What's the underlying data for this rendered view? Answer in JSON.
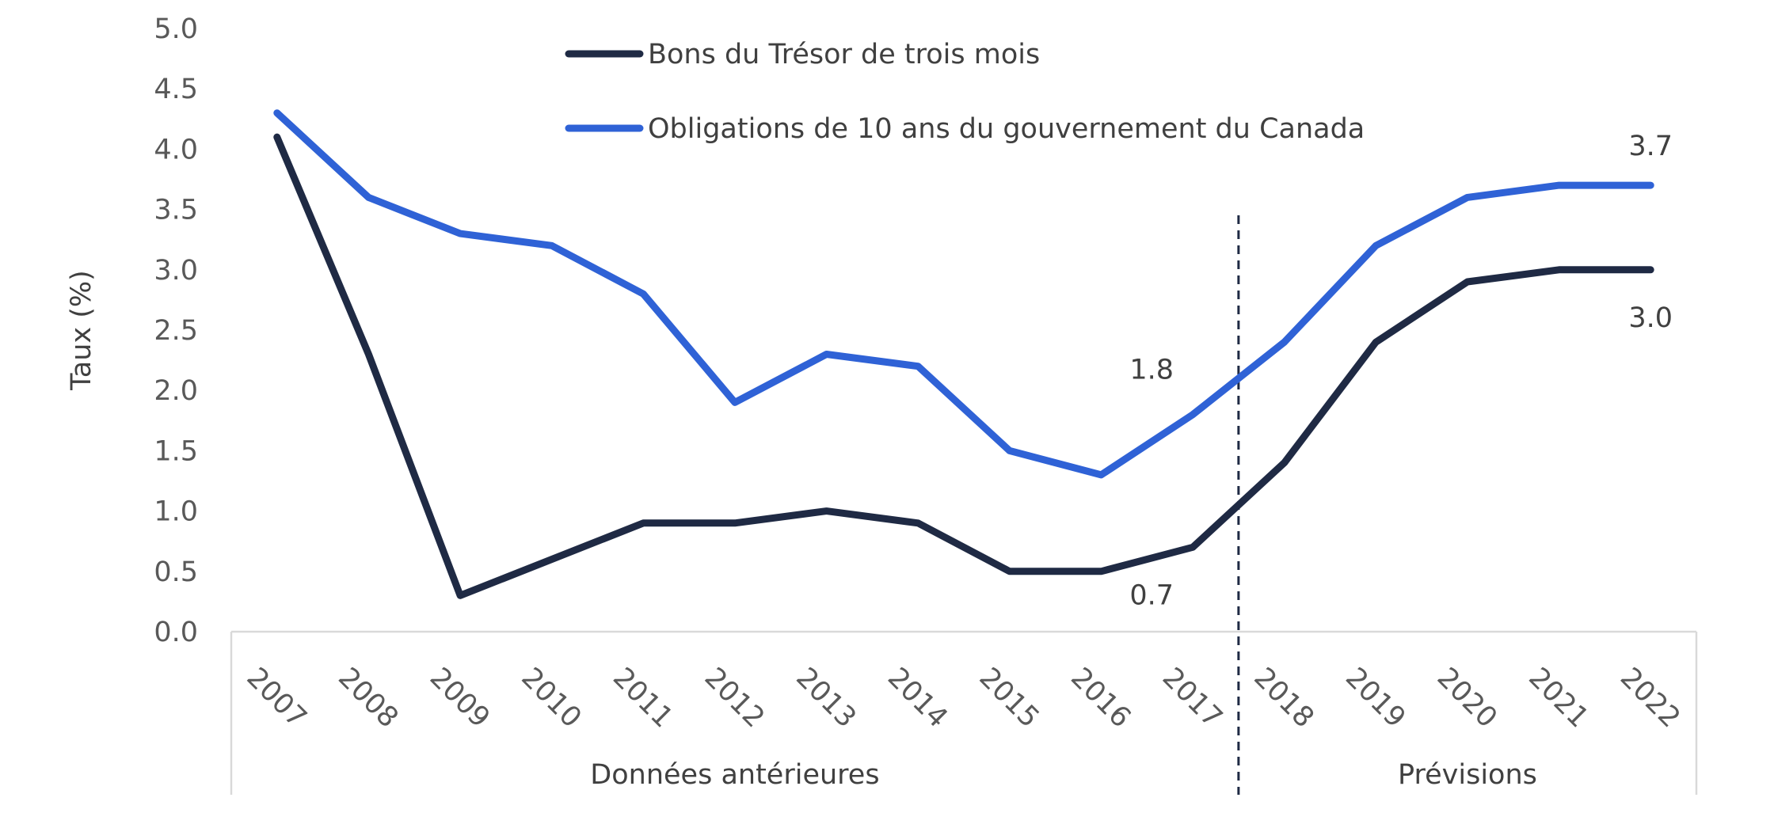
{
  "chart_data": {
    "type": "line",
    "ylabel": "Taux (%)",
    "ylim": [
      0,
      5
    ],
    "yticks": [
      "0.0",
      "0.5",
      "1.0",
      "1.5",
      "2.0",
      "2.5",
      "3.0",
      "3.5",
      "4.0",
      "4.5",
      "5.0"
    ],
    "x": [
      "2007",
      "2008",
      "2009",
      "2010",
      "2011",
      "2012",
      "2013",
      "2014",
      "2015",
      "2016",
      "2017",
      "2018",
      "2019",
      "2020",
      "2021",
      "2022"
    ],
    "groups": [
      {
        "label": "Données antérieures",
        "from": "2007",
        "to": "2017"
      },
      {
        "label": "Prévisions",
        "from": "2018",
        "to": "2022"
      }
    ],
    "series": [
      {
        "name": "Bons du Trésor de trois mois",
        "color": "#1f2a44",
        "values": [
          4.1,
          2.3,
          0.3,
          0.6,
          0.9,
          0.9,
          1.0,
          0.9,
          0.5,
          0.5,
          0.7,
          1.4,
          2.4,
          2.9,
          3.0,
          3.0
        ]
      },
      {
        "name": "Obligations de 10 ans du gouvernement du Canada",
        "color": "#2f62d6",
        "values": [
          4.3,
          3.6,
          3.3,
          3.2,
          2.8,
          1.9,
          2.3,
          2.2,
          1.5,
          1.3,
          1.8,
          2.4,
          3.2,
          3.6,
          3.7,
          3.7
        ]
      }
    ],
    "annotations": [
      {
        "text": "1.8",
        "x": "2017",
        "series": 1,
        "place": "above-left"
      },
      {
        "text": "0.7",
        "x": "2017",
        "series": 0,
        "place": "below-left"
      },
      {
        "text": "3.7",
        "x": "2022",
        "series": 1,
        "place": "above"
      },
      {
        "text": "3.0",
        "x": "2022",
        "series": 0,
        "place": "below"
      }
    ],
    "legend": "top-center",
    "grid": false
  }
}
